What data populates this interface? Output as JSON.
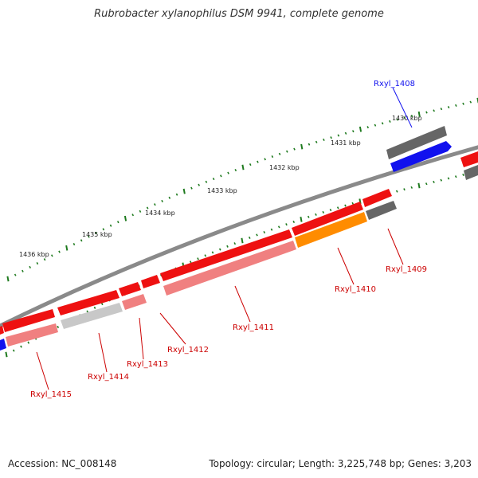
{
  "title": "Rubrobacter xylanophilus DSM 9941, complete genome",
  "footer": {
    "accession": "Accession: NC_008148",
    "stats": "Topology: circular; Length: 3,225,748 bp; Genes: 3,203"
  },
  "colors": {
    "backbone": "#8c8c8c",
    "ruler_ticks": "#1e7a1e",
    "forward_gene": "#ee1111",
    "gray_gene": "#666666",
    "blue_gene": "#1111ee",
    "light_red": "#f08080",
    "light_gray": "#c8c8c8",
    "orange": "#ff8c00"
  },
  "ruler": [
    "1430 kbp",
    "1431 kbp",
    "1432 kbp",
    "1433 kbp",
    "1434 kbp",
    "1435 kbp",
    "1436 kbp"
  ],
  "gene_labels": [
    {
      "text": "Rxyl_1408",
      "color": "#1111ee"
    },
    {
      "text": "Rxyl_1409",
      "color": "#cc0000"
    },
    {
      "text": "Rxyl_1410",
      "color": "#cc0000"
    },
    {
      "text": "Rxyl_1411",
      "color": "#cc0000"
    },
    {
      "text": "Rxyl_1412",
      "color": "#cc0000"
    },
    {
      "text": "Rxyl_1413",
      "color": "#cc0000"
    },
    {
      "text": "Rxyl_1414",
      "color": "#cc0000"
    },
    {
      "text": "Rxyl_1415",
      "color": "#cc0000"
    }
  ]
}
